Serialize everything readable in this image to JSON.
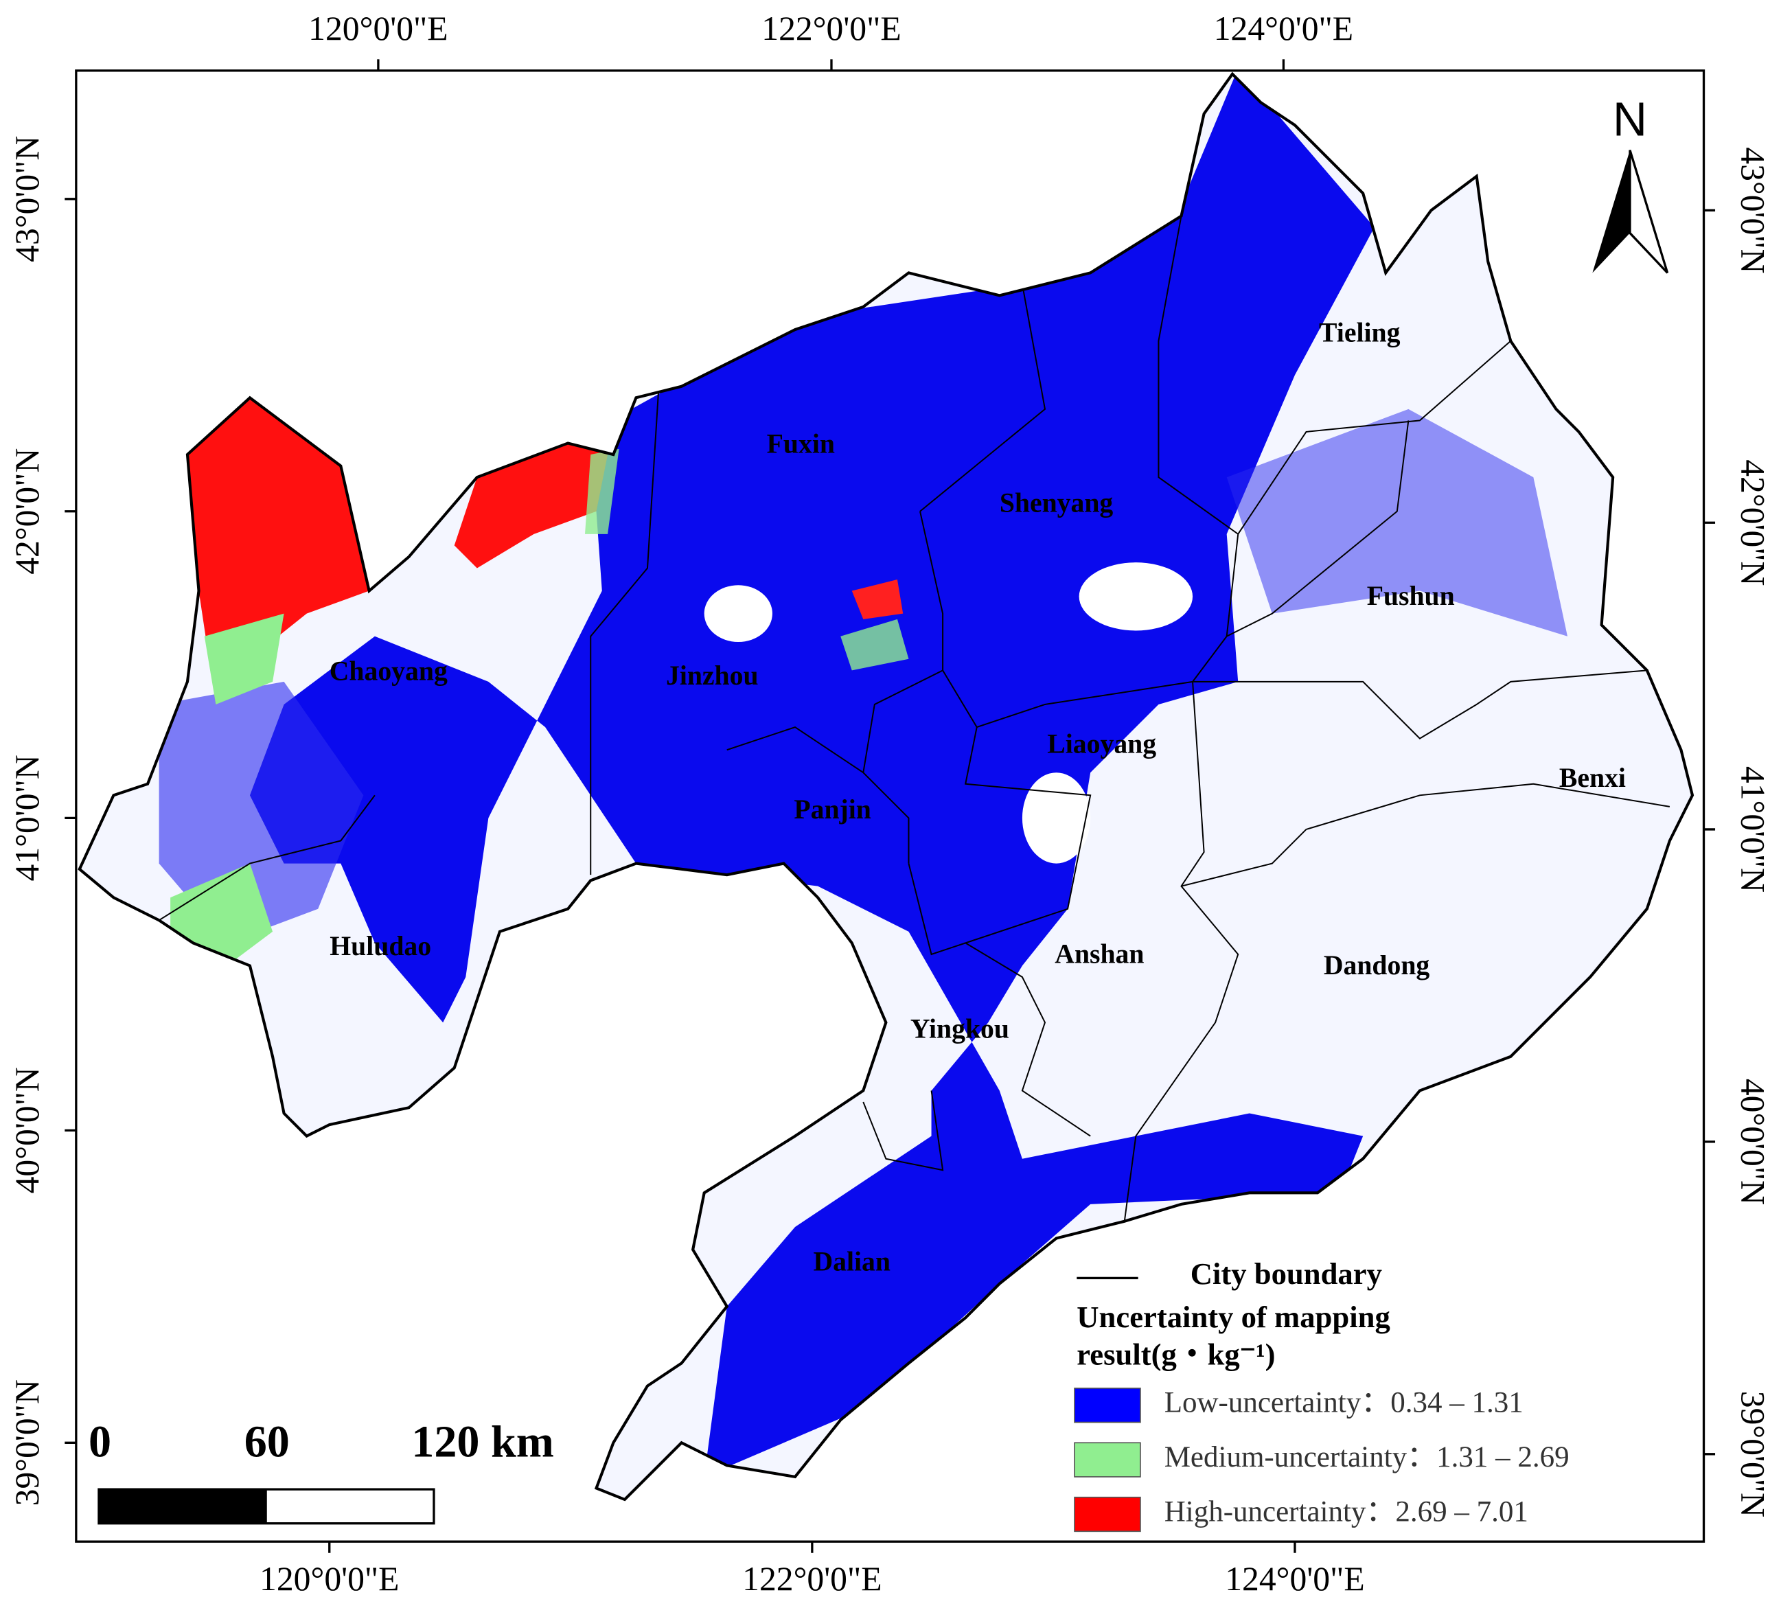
{
  "graticule": {
    "top": [
      "120°0'0\"E",
      "122°0'0\"E",
      "124°0'0\"E"
    ],
    "bottom": [
      "120°0'0\"E",
      "122°0'0\"E",
      "124°0'0\"E"
    ],
    "left": [
      "43°0'0\"N",
      "42°0'0\"N",
      "41°0'0\"N",
      "40°0'0\"N",
      "39°0'0\"N"
    ],
    "right": [
      "43°0'0\"N",
      "42°0'0\"N",
      "41°0'0\"N",
      "40°0'0\"N",
      "39°0'0\"N"
    ]
  },
  "cities": [
    "Tieling",
    "Fuxin",
    "Shenyang",
    "Fushun",
    "Chaoyang",
    "Jinzhou",
    "Liaoyang",
    "Benxi",
    "Panjin",
    "Huludao",
    "Anshan",
    "Dandong",
    "Yingkou",
    "Dalian"
  ],
  "north": "N",
  "scale_bar": [
    "0",
    "60",
    "120 km"
  ],
  "legend": {
    "boundary": "City boundary",
    "title": [
      "Uncertainty of mapping",
      "result(g・kg⁻¹)"
    ],
    "items": [
      {
        "label": "Low-uncertainty：0.34 – 1.31",
        "color": "#0000ff"
      },
      {
        "label": "Medium-uncertainty：1.31 – 2.69",
        "color": "#90ee90"
      },
      {
        "label": "High-uncertainty：2.69 – 7.01",
        "color": "#ff0000"
      }
    ]
  }
}
